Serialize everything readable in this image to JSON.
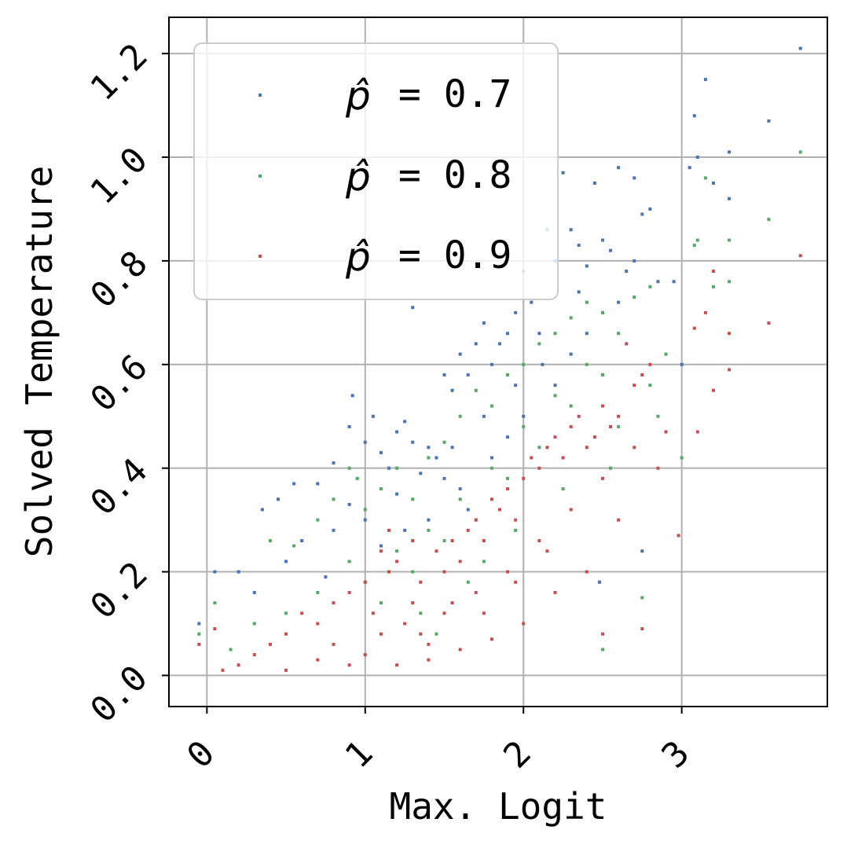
{
  "chart_data": {
    "type": "scatter",
    "title": "",
    "xlabel": "Max. Logit",
    "ylabel": "Solved Temperature",
    "xlim": [
      -0.24,
      3.92
    ],
    "ylim": [
      -0.06,
      1.27
    ],
    "xticks": [
      0,
      1,
      2,
      3
    ],
    "yticks": [
      0.0,
      0.2,
      0.4,
      0.6,
      0.8,
      1.0,
      1.2
    ],
    "xtick_labels": [
      "0",
      "1",
      "2",
      "3"
    ],
    "ytick_labels": [
      "0.0",
      "0.2",
      "0.4",
      "0.6",
      "0.8",
      "1.0",
      "1.2"
    ],
    "tick_label_rotation": 45,
    "grid": true,
    "legend_position": "top-left",
    "legend": [
      {
        "symbol": "p̂",
        "text": " = 0.7"
      },
      {
        "symbol": "p̂",
        "text": " = 0.8"
      },
      {
        "symbol": "p̂",
        "text": " = 0.9"
      }
    ],
    "series": [
      {
        "color": "#4c72b0",
        "points": [
          [
            -0.05,
            0.1
          ],
          [
            0.05,
            0.2
          ],
          [
            0.2,
            0.2
          ],
          [
            0.35,
            0.32
          ],
          [
            0.45,
            0.34
          ],
          [
            0.55,
            0.37
          ],
          [
            0.7,
            0.37
          ],
          [
            0.8,
            0.41
          ],
          [
            0.9,
            0.48
          ],
          [
            0.92,
            0.54
          ],
          [
            1.0,
            0.45
          ],
          [
            1.05,
            0.5
          ],
          [
            1.1,
            0.43
          ],
          [
            1.15,
            0.4
          ],
          [
            1.2,
            0.47
          ],
          [
            1.25,
            0.49
          ],
          [
            1.3,
            0.45
          ],
          [
            1.3,
            0.71
          ],
          [
            1.4,
            0.44
          ],
          [
            1.45,
            0.42
          ],
          [
            1.5,
            0.58
          ],
          [
            1.55,
            0.55
          ],
          [
            1.6,
            0.62
          ],
          [
            1.65,
            0.58
          ],
          [
            1.7,
            0.64
          ],
          [
            1.75,
            0.68
          ],
          [
            1.8,
            0.6
          ],
          [
            1.85,
            0.64
          ],
          [
            1.9,
            0.66
          ],
          [
            1.95,
            0.7
          ],
          [
            2.0,
            0.78
          ],
          [
            2.05,
            0.72
          ],
          [
            2.1,
            0.66
          ],
          [
            2.15,
            0.86
          ],
          [
            2.2,
            0.8
          ],
          [
            2.25,
            0.97
          ],
          [
            2.3,
            0.86
          ],
          [
            2.35,
            0.83
          ],
          [
            2.4,
            0.79
          ],
          [
            2.45,
            0.95
          ],
          [
            2.5,
            0.84
          ],
          [
            2.55,
            0.82
          ],
          [
            2.6,
            0.98
          ],
          [
            2.65,
            0.78
          ],
          [
            2.7,
            0.96
          ],
          [
            2.75,
            0.89
          ],
          [
            2.8,
            0.9
          ],
          [
            2.85,
            0.76
          ],
          [
            2.95,
            0.76
          ],
          [
            3.05,
            0.98
          ],
          [
            3.08,
            1.08
          ],
          [
            3.1,
            1.0
          ],
          [
            3.15,
            1.15
          ],
          [
            3.2,
            0.95
          ],
          [
            3.3,
            1.01
          ],
          [
            3.3,
            0.92
          ],
          [
            3.55,
            1.07
          ],
          [
            3.75,
            1.21
          ],
          [
            3.0,
            0.6
          ],
          [
            2.75,
            0.24
          ],
          [
            2.48,
            0.18
          ],
          [
            1.0,
            0.3
          ],
          [
            1.2,
            0.35
          ],
          [
            1.4,
            0.3
          ],
          [
            1.6,
            0.36
          ],
          [
            1.8,
            0.42
          ],
          [
            2.0,
            0.5
          ],
          [
            2.2,
            0.56
          ],
          [
            2.4,
            0.66
          ],
          [
            2.6,
            0.72
          ],
          [
            1.1,
            0.25
          ],
          [
            1.5,
            0.38
          ],
          [
            1.9,
            0.46
          ],
          [
            2.3,
            0.62
          ],
          [
            0.6,
            0.26
          ],
          [
            0.8,
            0.28
          ],
          [
            0.9,
            0.33
          ],
          [
            1.35,
            0.39
          ],
          [
            1.75,
            0.5
          ],
          [
            2.12,
            0.6
          ],
          [
            2.5,
            0.7
          ],
          [
            2.7,
            0.8
          ],
          [
            2.35,
            0.74
          ],
          [
            1.95,
            0.56
          ],
          [
            1.55,
            0.44
          ],
          [
            0.75,
            0.19
          ],
          [
            0.5,
            0.22
          ],
          [
            0.3,
            0.16
          ],
          [
            1.25,
            0.28
          ],
          [
            1.65,
            0.32
          ]
        ]
      },
      {
        "color": "#55a868",
        "points": [
          [
            -0.05,
            0.08
          ],
          [
            0.05,
            0.14
          ],
          [
            0.15,
            0.05
          ],
          [
            0.3,
            0.1
          ],
          [
            0.4,
            0.26
          ],
          [
            0.55,
            0.25
          ],
          [
            0.7,
            0.3
          ],
          [
            0.8,
            0.34
          ],
          [
            0.9,
            0.4
          ],
          [
            0.95,
            0.38
          ],
          [
            1.0,
            0.32
          ],
          [
            1.1,
            0.36
          ],
          [
            1.2,
            0.4
          ],
          [
            1.3,
            0.34
          ],
          [
            1.4,
            0.42
          ],
          [
            1.5,
            0.45
          ],
          [
            1.6,
            0.5
          ],
          [
            1.7,
            0.55
          ],
          [
            1.8,
            0.52
          ],
          [
            1.9,
            0.58
          ],
          [
            2.0,
            0.6
          ],
          [
            2.1,
            0.64
          ],
          [
            2.2,
            0.66
          ],
          [
            2.3,
            0.69
          ],
          [
            2.4,
            0.72
          ],
          [
            2.5,
            0.7
          ],
          [
            2.6,
            0.66
          ],
          [
            2.7,
            0.73
          ],
          [
            2.8,
            0.75
          ],
          [
            2.9,
            0.62
          ],
          [
            3.0,
            0.42
          ],
          [
            3.08,
            0.83
          ],
          [
            3.1,
            0.84
          ],
          [
            3.15,
            0.96
          ],
          [
            3.2,
            0.75
          ],
          [
            3.3,
            0.84
          ],
          [
            3.3,
            0.76
          ],
          [
            3.55,
            0.88
          ],
          [
            3.75,
            1.01
          ],
          [
            2.75,
            0.15
          ],
          [
            2.5,
            0.05
          ],
          [
            1.3,
            0.2
          ],
          [
            1.5,
            0.26
          ],
          [
            1.7,
            0.3
          ],
          [
            1.9,
            0.38
          ],
          [
            2.1,
            0.44
          ],
          [
            2.3,
            0.52
          ],
          [
            2.5,
            0.58
          ],
          [
            1.0,
            0.18
          ],
          [
            1.2,
            0.24
          ],
          [
            1.4,
            0.28
          ],
          [
            1.6,
            0.34
          ],
          [
            1.8,
            0.4
          ],
          [
            2.0,
            0.48
          ],
          [
            2.2,
            0.54
          ],
          [
            2.4,
            0.6
          ],
          [
            2.6,
            0.48
          ],
          [
            2.8,
            0.56
          ],
          [
            0.7,
            0.16
          ],
          [
            0.5,
            0.12
          ],
          [
            0.9,
            0.22
          ],
          [
            1.1,
            0.14
          ],
          [
            1.35,
            0.12
          ],
          [
            1.65,
            0.18
          ],
          [
            1.95,
            0.28
          ],
          [
            2.25,
            0.36
          ],
          [
            2.55,
            0.4
          ],
          [
            2.85,
            0.5
          ],
          [
            1.45,
            0.08
          ],
          [
            1.75,
            0.22
          ]
        ]
      },
      {
        "color": "#c44e52",
        "points": [
          [
            -0.05,
            0.06
          ],
          [
            0.05,
            0.09
          ],
          [
            0.1,
            0.01
          ],
          [
            0.2,
            0.02
          ],
          [
            0.3,
            0.04
          ],
          [
            0.4,
            0.06
          ],
          [
            0.5,
            0.08
          ],
          [
            0.6,
            0.12
          ],
          [
            0.7,
            0.1
          ],
          [
            0.8,
            0.14
          ],
          [
            0.9,
            0.16
          ],
          [
            1.0,
            0.18
          ],
          [
            1.05,
            0.12
          ],
          [
            1.1,
            0.08
          ],
          [
            1.15,
            0.2
          ],
          [
            1.2,
            0.22
          ],
          [
            1.25,
            0.1
          ],
          [
            1.3,
            0.14
          ],
          [
            1.35,
            0.18
          ],
          [
            1.4,
            0.06
          ],
          [
            1.45,
            0.24
          ],
          [
            1.5,
            0.2
          ],
          [
            1.55,
            0.26
          ],
          [
            1.6,
            0.22
          ],
          [
            1.65,
            0.28
          ],
          [
            1.7,
            0.3
          ],
          [
            1.75,
            0.26
          ],
          [
            1.8,
            0.34
          ],
          [
            1.85,
            0.32
          ],
          [
            1.9,
            0.36
          ],
          [
            1.95,
            0.3
          ],
          [
            2.0,
            0.38
          ],
          [
            2.05,
            0.42
          ],
          [
            2.1,
            0.4
          ],
          [
            2.15,
            0.44
          ],
          [
            2.2,
            0.46
          ],
          [
            2.25,
            0.42
          ],
          [
            2.3,
            0.48
          ],
          [
            2.35,
            0.5
          ],
          [
            2.4,
            0.44
          ],
          [
            2.45,
            0.46
          ],
          [
            2.5,
            0.52
          ],
          [
            2.55,
            0.48
          ],
          [
            2.6,
            0.5
          ],
          [
            2.65,
            0.64
          ],
          [
            2.7,
            0.56
          ],
          [
            2.75,
            0.58
          ],
          [
            2.8,
            0.6
          ],
          [
            2.9,
            0.47
          ],
          [
            2.98,
            0.27
          ],
          [
            3.08,
            0.67
          ],
          [
            3.1,
            0.47
          ],
          [
            3.15,
            0.7
          ],
          [
            3.2,
            0.78
          ],
          [
            3.2,
            0.55
          ],
          [
            3.3,
            0.66
          ],
          [
            3.3,
            0.59
          ],
          [
            3.55,
            0.68
          ],
          [
            3.75,
            0.81
          ],
          [
            2.75,
            0.09
          ],
          [
            2.5,
            0.08
          ],
          [
            1.0,
            0.04
          ],
          [
            1.2,
            0.02
          ],
          [
            1.4,
            0.03
          ],
          [
            1.6,
            0.05
          ],
          [
            1.8,
            0.07
          ],
          [
            2.0,
            0.1
          ],
          [
            2.2,
            0.16
          ],
          [
            2.4,
            0.2
          ],
          [
            2.6,
            0.3
          ],
          [
            0.8,
            0.06
          ],
          [
            0.9,
            0.02
          ],
          [
            1.1,
            0.24
          ],
          [
            1.3,
            0.26
          ],
          [
            1.5,
            0.12
          ],
          [
            1.7,
            0.16
          ],
          [
            1.9,
            0.2
          ],
          [
            2.1,
            0.26
          ],
          [
            2.3,
            0.32
          ],
          [
            2.5,
            0.38
          ],
          [
            2.7,
            0.44
          ],
          [
            2.85,
            0.4
          ],
          [
            0.5,
            0.01
          ],
          [
            0.7,
            0.03
          ],
          [
            1.15,
            0.28
          ],
          [
            1.35,
            0.08
          ],
          [
            1.55,
            0.14
          ],
          [
            1.75,
            0.12
          ],
          [
            1.95,
            0.18
          ],
          [
            2.15,
            0.24
          ]
        ]
      }
    ]
  }
}
